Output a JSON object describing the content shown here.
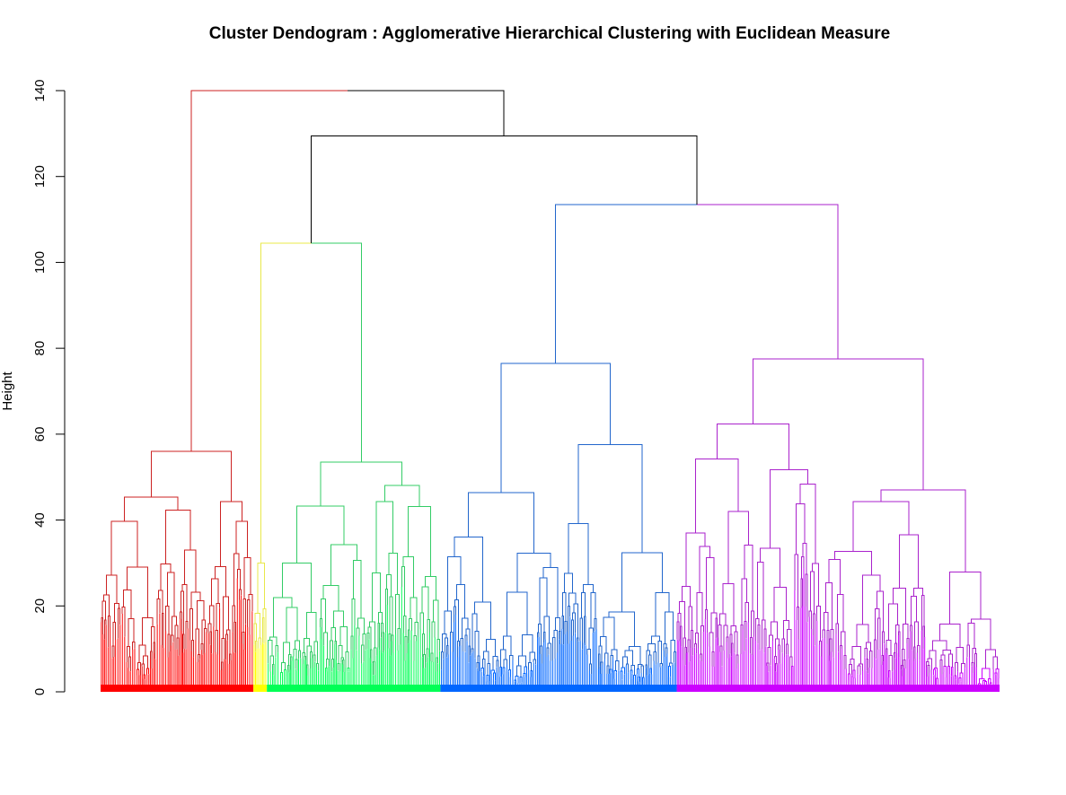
{
  "chart_data": {
    "type": "dendrogram",
    "title": "Cluster Dendogram : Agglomerative Hierarchical Clustering with Euclidean Measure",
    "ylabel": "Height",
    "ylim": [
      0,
      140
    ],
    "yticks": [
      0,
      20,
      40,
      60,
      80,
      100,
      120,
      140
    ],
    "grid": false,
    "leaf_count_approx": 1000,
    "link_color": "#000000",
    "clusters": [
      {
        "id": "c1",
        "color": "#ff0000",
        "line_color": "#cc2222",
        "leaf_range": [
          0.0,
          0.17
        ],
        "merge_height": 56
      },
      {
        "id": "c2",
        "color": "#ffff00",
        "line_color": "#e8e84a",
        "leaf_range": [
          0.17,
          0.185
        ],
        "merge_height": 30
      },
      {
        "id": "c3",
        "color": "#00ff55",
        "line_color": "#33cc66",
        "leaf_range": [
          0.185,
          0.378
        ],
        "merge_height": 53.5
      },
      {
        "id": "c4",
        "color": "#0066ff",
        "line_color": "#2266cc",
        "leaf_range": [
          0.378,
          0.641
        ],
        "merge_height": 76.5
      },
      {
        "id": "c5",
        "color": "#cc00ff",
        "line_color": "#aa22cc",
        "leaf_range": [
          0.641,
          1.0
        ],
        "merge_height": 77.5
      }
    ],
    "top_merges": [
      {
        "name": "c2+c3",
        "height": 104.5
      },
      {
        "name": "c4+c5",
        "height": 113.5
      },
      {
        "name": "c23+c45",
        "height": 129.5
      },
      {
        "name": "root",
        "height": 140
      }
    ]
  }
}
